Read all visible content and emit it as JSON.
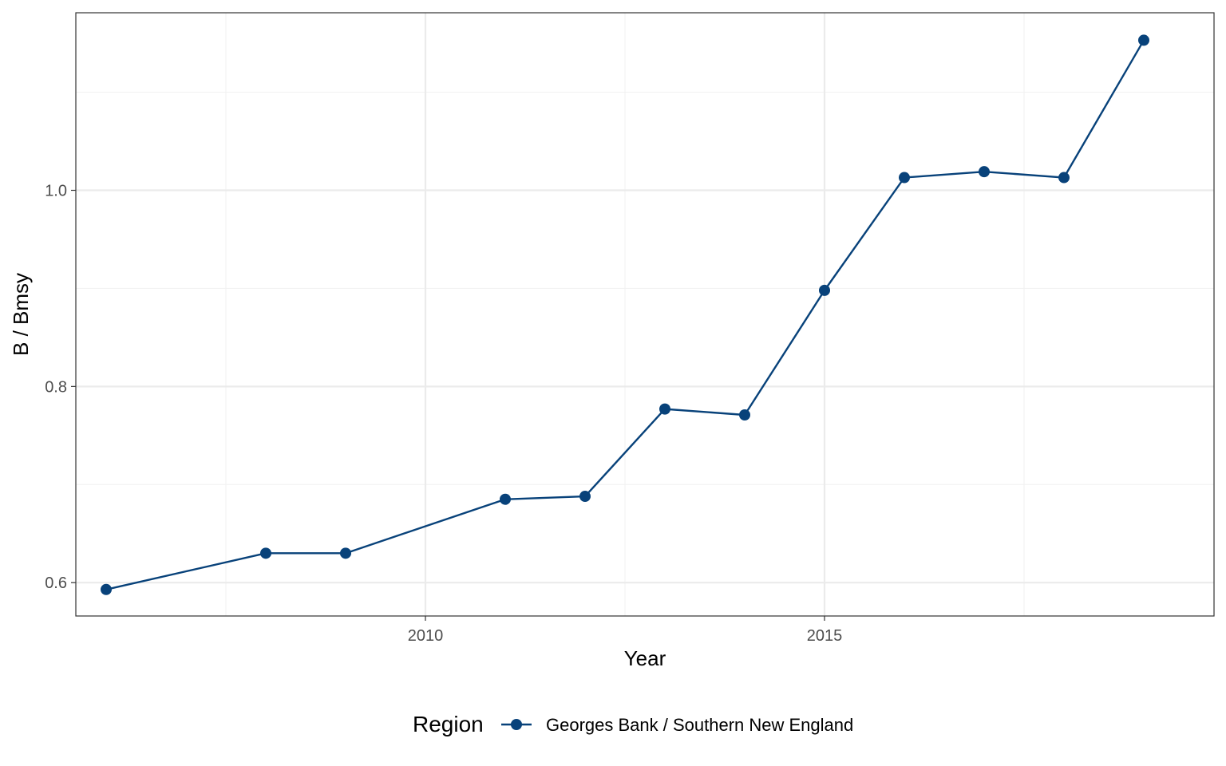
{
  "chart_data": {
    "type": "line",
    "title": "",
    "xlabel": "Year",
    "ylabel": "B / Bmsy",
    "xlim": [
      2005.62,
      2019.88
    ],
    "ylim": [
      0.566,
      1.181
    ],
    "x_ticks": [
      2010,
      2015
    ],
    "x_tick_labels": [
      "2010",
      "2015"
    ],
    "x_minor_ticks": [
      2007.5,
      2012.5,
      2017.5
    ],
    "y_ticks": [
      0.6,
      0.8,
      1.0
    ],
    "y_tick_labels": [
      "0.6",
      "0.8",
      "1.0"
    ],
    "y_minor_ticks": [
      0.7,
      0.9,
      1.1
    ],
    "grid": true,
    "legend": {
      "title": "Region",
      "position": "bottom",
      "entries": [
        "Georges Bank / Southern New England"
      ]
    },
    "series": [
      {
        "name": "Georges Bank / Southern New England",
        "color": "#08427a",
        "x": [
          2006,
          2008,
          2009,
          2011,
          2012,
          2013,
          2014,
          2015,
          2016,
          2017,
          2018,
          2019
        ],
        "y": [
          0.593,
          0.63,
          0.63,
          0.685,
          0.688,
          0.777,
          0.771,
          0.898,
          1.013,
          1.019,
          1.013,
          1.153
        ]
      }
    ]
  }
}
